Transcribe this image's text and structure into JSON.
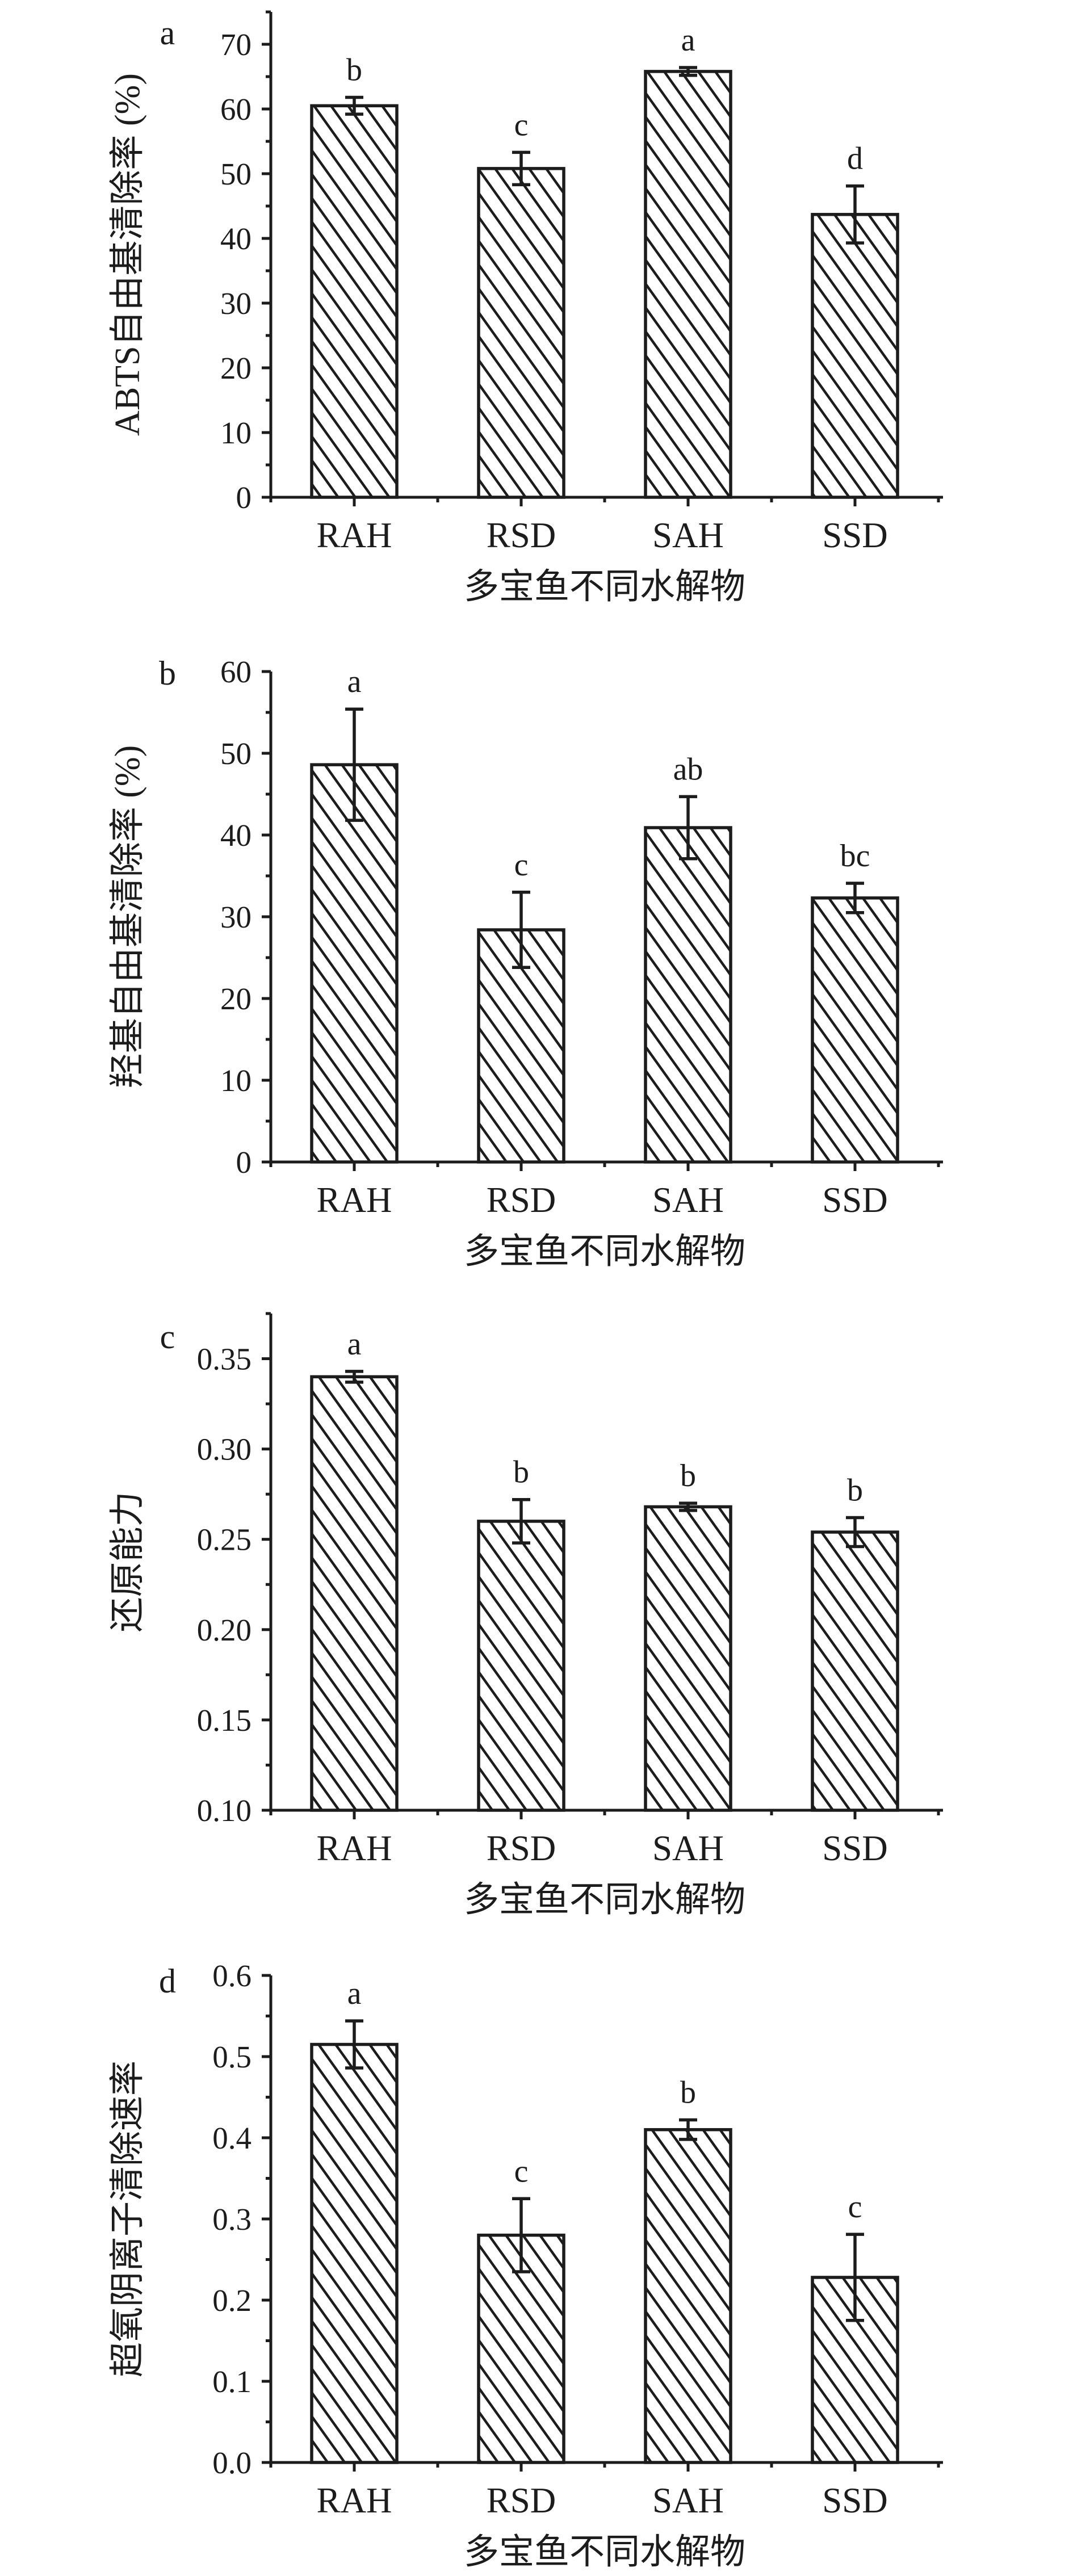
{
  "figure": {
    "background": "#ffffff",
    "ink_color": "#1c1c1c",
    "bar_fill": "#ffffff",
    "bar_hatch_style": "diagonal-backslash-hatch",
    "panel_count": 4
  },
  "chart_data": [
    {
      "type": "bar",
      "panel_label": "a",
      "title": "",
      "ylabel": "ABTS自由基清除率 (%)",
      "xlabel": "多宝鱼不同水解物",
      "categories": [
        "RAH",
        "RSD",
        "SAH",
        "SSD"
      ],
      "values": [
        60.5,
        50.8,
        65.8,
        43.7
      ],
      "errors": [
        1.3,
        2.5,
        0.6,
        4.4
      ],
      "sig_letters": [
        "b",
        "c",
        "a",
        "d"
      ],
      "ylim": [
        0,
        75
      ],
      "yticks": {
        "values": [
          0,
          10,
          20,
          30,
          40,
          50,
          60,
          70
        ],
        "labels": [
          "0",
          "10",
          "20",
          "30",
          "40",
          "50",
          "60",
          "70"
        ]
      },
      "minor_ticks": [
        5,
        15,
        25,
        35,
        45,
        55,
        65,
        75
      ],
      "grid": false,
      "legend": "none"
    },
    {
      "type": "bar",
      "panel_label": "b",
      "title": "",
      "ylabel": "羟基自由基清除率 (%)",
      "xlabel": "多宝鱼不同水解物",
      "categories": [
        "RAH",
        "RSD",
        "SAH",
        "SSD"
      ],
      "values": [
        48.6,
        28.4,
        40.9,
        32.3
      ],
      "errors": [
        6.8,
        4.6,
        3.8,
        1.8
      ],
      "sig_letters": [
        "a",
        "c",
        "ab",
        "bc"
      ],
      "ylim": [
        0,
        60
      ],
      "yticks": {
        "values": [
          0,
          10,
          20,
          30,
          40,
          50,
          60
        ],
        "labels": [
          "0",
          "10",
          "20",
          "30",
          "40",
          "50",
          "60"
        ]
      },
      "minor_ticks": [
        5,
        15,
        25,
        35,
        45,
        55
      ],
      "grid": false,
      "legend": "none"
    },
    {
      "type": "bar",
      "panel_label": "c",
      "title": "",
      "ylabel": "还原能力",
      "xlabel": "多宝鱼不同水解物",
      "categories": [
        "RAH",
        "RSD",
        "SAH",
        "SSD"
      ],
      "values": [
        0.34,
        0.26,
        0.268,
        0.254
      ],
      "errors": [
        0.003,
        0.012,
        0.002,
        0.008
      ],
      "sig_letters": [
        "a",
        "b",
        "b",
        "b"
      ],
      "ylim": [
        0.1,
        0.375
      ],
      "yticks": {
        "values": [
          0.1,
          0.15,
          0.2,
          0.25,
          0.3,
          0.35
        ],
        "labels": [
          "0.10",
          "0.15",
          "0.20",
          "0.25",
          "0.30",
          "0.35"
        ]
      },
      "minor_ticks": [
        0.125,
        0.175,
        0.225,
        0.275,
        0.325,
        0.375
      ],
      "grid": false,
      "legend": "none"
    },
    {
      "type": "bar",
      "panel_label": "d",
      "title": "",
      "ylabel": "超氧阴离子清除速率",
      "xlabel": "多宝鱼不同水解物",
      "categories": [
        "RAH",
        "RSD",
        "SAH",
        "SSD"
      ],
      "values": [
        0.515,
        0.28,
        0.41,
        0.228
      ],
      "errors": [
        0.029,
        0.045,
        0.012,
        0.053
      ],
      "sig_letters": [
        "a",
        "c",
        "b",
        "c"
      ],
      "ylim": [
        0.0,
        0.6
      ],
      "yticks": {
        "values": [
          0.0,
          0.1,
          0.2,
          0.3,
          0.4,
          0.5,
          0.6
        ],
        "labels": [
          "0.0",
          "0.1",
          "0.2",
          "0.3",
          "0.4",
          "0.5",
          "0.6"
        ]
      },
      "minor_ticks": [
        0.05,
        0.15,
        0.25,
        0.35,
        0.45,
        0.55
      ],
      "grid": false,
      "legend": "none"
    }
  ]
}
